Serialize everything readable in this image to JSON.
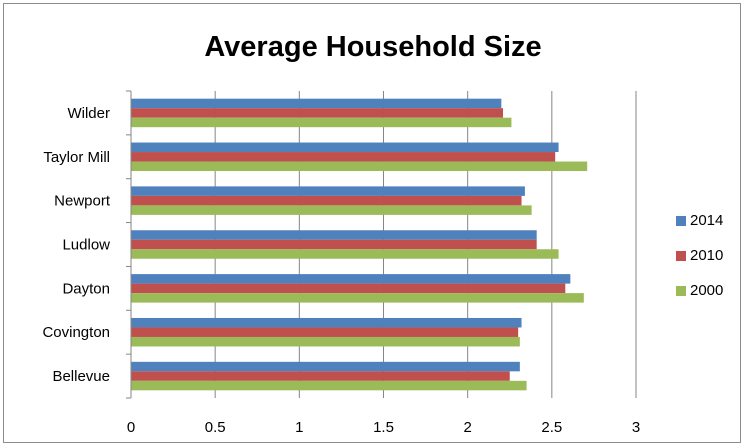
{
  "chart_data": {
    "type": "bar",
    "orientation": "horizontal",
    "title": "Average Household Size",
    "categories": [
      "Wilder",
      "Taylor Mill",
      "Newport",
      "Ludlow",
      "Dayton",
      "Covington",
      "Bellevue"
    ],
    "series": [
      {
        "name": "2014",
        "color": "#4F81BD",
        "values": [
          2.2,
          2.54,
          2.34,
          2.41,
          2.61,
          2.32,
          2.31
        ]
      },
      {
        "name": "2010",
        "color": "#C0504D",
        "values": [
          2.21,
          2.52,
          2.32,
          2.41,
          2.58,
          2.3,
          2.25
        ]
      },
      {
        "name": "2000",
        "color": "#9BBB59",
        "values": [
          2.26,
          2.71,
          2.38,
          2.54,
          2.69,
          2.31,
          2.35
        ]
      }
    ],
    "xlim": [
      0,
      3
    ],
    "xticks": [
      "0",
      "0.5",
      "1",
      "1.5",
      "2",
      "2.5",
      "3"
    ],
    "xlabel": "",
    "ylabel": "",
    "grid": true,
    "legend_position": "right"
  }
}
